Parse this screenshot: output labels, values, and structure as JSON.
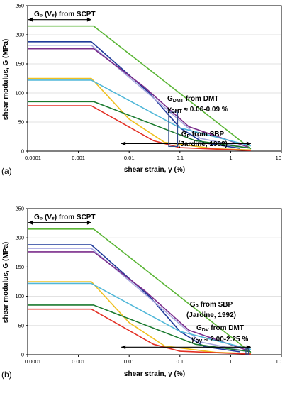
{
  "chart_data": [
    {
      "type": "line",
      "panel_label": "(a)",
      "xscale": "log",
      "xlim": [
        0.0001,
        10
      ],
      "ylim": [
        0,
        250
      ],
      "xticks": [
        "0.0001",
        "0.001",
        "0.01",
        "0.1",
        "1",
        "10"
      ],
      "yticks": [
        "0",
        "50",
        "100",
        "150",
        "200",
        "250"
      ],
      "xlabel": "shear strain, γ (%)",
      "ylabel": "shear modulus, G (MPa)",
      "annotations": {
        "g0": "G₀ (Vₛ) from SCPT",
        "dmt1": "G",
        "dmt1_sub": "DMT",
        "dmt1_tail": " from DMT",
        "dmt2": "γ",
        "dmt2_sub": "DMT",
        "dmt2_tail": " ≈ 0.06-0.09 %",
        "sbp1": "Gₚ from SBP",
        "sbp2": "(Jardine, 1992)"
      },
      "series": [
        {
          "color": "#5ab535",
          "x": [
            0.0001,
            0.002,
            2.5
          ],
          "y": [
            215,
            215,
            4
          ]
        },
        {
          "color": "#1f3a9a",
          "x": [
            0.0001,
            0.0018,
            0.025,
            0.1,
            0.3,
            1.5
          ],
          "y": [
            188,
            188,
            100,
            40,
            14,
            5
          ]
        },
        {
          "color": "#a8a8e0",
          "x": [
            0.0001,
            0.0018,
            0.05,
            0.25,
            2.0
          ],
          "y": [
            182,
            182,
            75,
            22,
            6
          ]
        },
        {
          "color": "#7b2d8b",
          "x": [
            0.0001,
            0.002,
            0.02,
            0.15,
            2.2
          ],
          "y": [
            176,
            176,
            110,
            42,
            7
          ]
        },
        {
          "color": "#f0c020",
          "x": [
            0.0001,
            0.0018,
            0.01,
            0.05,
            0.5,
            2.5
          ],
          "y": [
            125,
            125,
            55,
            15,
            4,
            2
          ]
        },
        {
          "color": "#50b7d8",
          "x": [
            0.0001,
            0.0018,
            0.1,
            2.5
          ],
          "y": [
            122,
            122,
            40,
            9
          ]
        },
        {
          "color": "#1a7a2e",
          "x": [
            0.0001,
            0.002,
            0.2,
            2.5
          ],
          "y": [
            85,
            85,
            18,
            5
          ]
        },
        {
          "color": "#e33025",
          "x": [
            0.0001,
            0.0018,
            0.03,
            0.1,
            2.5
          ],
          "y": [
            78,
            78,
            18,
            6,
            1
          ]
        }
      ],
      "dmt_box": {
        "x": [
          0.06,
          0.09
        ],
        "y": [
          8,
          67
        ]
      },
      "sbp_arrow": {
        "x": [
          0.007,
          2.5
        ],
        "y": 13
      },
      "g0_arrow": {
        "x": [
          0.0001,
          0.0018
        ],
        "y": 226
      }
    },
    {
      "type": "line",
      "panel_label": "(b)",
      "xscale": "log",
      "xlim": [
        0.0001,
        10
      ],
      "ylim": [
        0,
        250
      ],
      "xticks": [
        "0.0001",
        "0.001",
        "0.01",
        "0.1",
        "1",
        "10"
      ],
      "yticks": [
        "0",
        "50",
        "100",
        "150",
        "200",
        "250"
      ],
      "xlabel": "shear strain, γ (%)",
      "ylabel": "shear modulus, G (MPa)",
      "annotations": {
        "g0": "G₀ (Vₛ) from SCPT",
        "sbp1": "Gₚ from SBP",
        "sbp2": "(Jardine, 1992)",
        "dv1": "G",
        "dv1_sub": "DV",
        "dv1_tail": " from DMT",
        "dv2": "γ",
        "dv2_sub": "DV",
        "dv2_tail": " ≈ 2.00-2.25 %"
      },
      "series": [
        {
          "color": "#5ab535",
          "x": [
            0.0001,
            0.002,
            2.5
          ],
          "y": [
            215,
            215,
            4
          ]
        },
        {
          "color": "#1f3a9a",
          "x": [
            0.0001,
            0.0018,
            0.025,
            0.1,
            0.3,
            1.5
          ],
          "y": [
            188,
            188,
            100,
            40,
            14,
            5
          ]
        },
        {
          "color": "#a8a8e0",
          "x": [
            0.0001,
            0.0018,
            0.05,
            0.25,
            2.0
          ],
          "y": [
            182,
            182,
            75,
            22,
            6
          ]
        },
        {
          "color": "#7b2d8b",
          "x": [
            0.0001,
            0.002,
            0.02,
            0.15,
            2.2
          ],
          "y": [
            176,
            176,
            110,
            42,
            7
          ]
        },
        {
          "color": "#f0c020",
          "x": [
            0.0001,
            0.0018,
            0.01,
            0.05,
            0.5,
            2.5
          ],
          "y": [
            125,
            125,
            55,
            15,
            4,
            2
          ]
        },
        {
          "color": "#50b7d8",
          "x": [
            0.0001,
            0.0018,
            0.1,
            2.5
          ],
          "y": [
            122,
            122,
            40,
            9
          ]
        },
        {
          "color": "#1a7a2e",
          "x": [
            0.0001,
            0.002,
            0.2,
            2.5
          ],
          "y": [
            85,
            85,
            18,
            5
          ]
        },
        {
          "color": "#e33025",
          "x": [
            0.0001,
            0.0018,
            0.03,
            0.1,
            2.5
          ],
          "y": [
            78,
            78,
            18,
            6,
            1
          ]
        }
      ],
      "dv_box": {
        "x": [
          2.0,
          2.25
        ],
        "y": [
          1,
          10
        ]
      },
      "sbp_arrow": {
        "x": [
          0.007,
          2.5
        ],
        "y": 13
      },
      "g0_arrow": {
        "x": [
          0.0001,
          0.0018
        ],
        "y": 226
      }
    }
  ]
}
